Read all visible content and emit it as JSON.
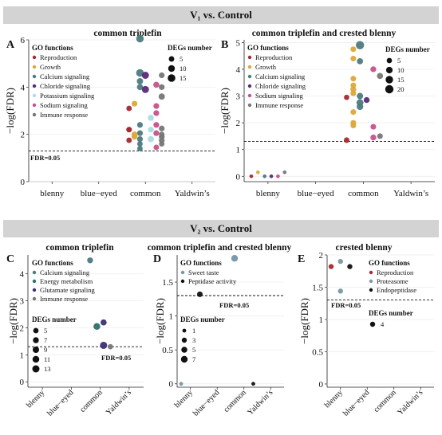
{
  "figure": {
    "section_titles": [
      "V₁ vs. Control",
      "V₂ vs. Control"
    ],
    "common": {
      "x_categories": [
        "blenny",
        "blue−eyed",
        "common",
        "Yaldwin’s"
      ],
      "ylabel": "−log(FDR)",
      "threshold_label": "FDR=0.05",
      "threshold_value": 1.301,
      "legend_go_title": "GO functions",
      "legend_size_title": "DEGs number"
    },
    "colors": {
      "Reproduction": "#a6292f",
      "Growth": "#dca83a",
      "Calcium signaling": "#4c7b80",
      "Chloride signaling": "#5a2a7a",
      "Potassium signaling": "#a9dde6",
      "Sodium signaling": "#c8508c",
      "Immune response": "#767676",
      "Energy metabolism": "#2f6e6e",
      "Glutamate signaling": "#3d2e74",
      "Sweet taste": "#7595a6",
      "Peptidase activity": "#111111",
      "Proteasome": "#7a98a6",
      "Endopeptidase": "#111111",
      "section_band": "#d3d3d3"
    }
  },
  "chart_data": [
    {
      "panel": "A",
      "title": "common triplefin",
      "type": "scatter",
      "xlabel": "",
      "ylabel": "−log(FDR)",
      "ylim": [
        0,
        6
      ],
      "yticks": [
        0,
        2,
        4,
        6
      ],
      "legend_go": [
        "Reproduction",
        "Growth",
        "Calcium signaling",
        "Chloride signaling",
        "Potassium signaling",
        "Sodium signaling",
        "Immune response"
      ],
      "legend_sizes": [
        5,
        10,
        15
      ],
      "points": [
        {
          "x": "common",
          "y": 6.05,
          "go": "Calcium signaling",
          "n": 14
        },
        {
          "x": "common",
          "y": 4.6,
          "go": "Calcium signaling",
          "n": 15
        },
        {
          "x": "common",
          "y": 4.5,
          "go": "Chloride signaling",
          "n": 12
        },
        {
          "x": "common",
          "y": 4.25,
          "go": "Calcium signaling",
          "n": 8
        },
        {
          "x": "common",
          "y": 4.0,
          "go": "Calcium signaling",
          "n": 7
        },
        {
          "x": "common",
          "y": 3.9,
          "go": "Chloride signaling",
          "n": 12
        },
        {
          "x": "common",
          "y": 3.3,
          "go": "Growth",
          "n": 6
        },
        {
          "x": "common",
          "y": 3.1,
          "go": "Reproduction",
          "n": 5
        },
        {
          "x": "common",
          "y": 2.4,
          "go": "Calcium signaling",
          "n": 6
        },
        {
          "x": "common",
          "y": 2.2,
          "go": "Reproduction",
          "n": 5
        },
        {
          "x": "common",
          "y": 2.05,
          "go": "Calcium signaling",
          "n": 6
        },
        {
          "x": "common",
          "y": 2.0,
          "go": "Growth",
          "n": 6
        },
        {
          "x": "common",
          "y": 1.9,
          "go": "Growth",
          "n": 6
        },
        {
          "x": "common",
          "y": 1.8,
          "go": "Calcium signaling",
          "n": 6
        },
        {
          "x": "common",
          "y": 1.6,
          "go": "Calcium signaling",
          "n": 5
        },
        {
          "x": "common",
          "y": 1.4,
          "go": "Calcium signaling",
          "n": 5
        },
        {
          "x": "common",
          "y": 2.7,
          "go": "Potassium signaling",
          "n": 7
        },
        {
          "x": "common",
          "y": 2.2,
          "go": "Potassium signaling",
          "n": 6
        },
        {
          "x": "common",
          "y": 1.8,
          "go": "Potassium signaling",
          "n": 8
        },
        {
          "x": "common",
          "y": 4.5,
          "go": "Immune response",
          "n": 6
        },
        {
          "x": "common",
          "y": 4.1,
          "go": "Sodium signaling",
          "n": 7
        },
        {
          "x": "common",
          "y": 4.0,
          "go": "Immune response",
          "n": 6
        },
        {
          "x": "common",
          "y": 3.6,
          "go": "Immune response",
          "n": 8
        },
        {
          "x": "common",
          "y": 3.2,
          "go": "Sodium signaling",
          "n": 6
        },
        {
          "x": "common",
          "y": 2.9,
          "go": "Sodium signaling",
          "n": 6
        },
        {
          "x": "common",
          "y": 2.4,
          "go": "Sodium signaling",
          "n": 6
        },
        {
          "x": "common",
          "y": 2.25,
          "go": "Immune response",
          "n": 6
        },
        {
          "x": "common",
          "y": 2.05,
          "go": "Sodium signaling",
          "n": 6
        },
        {
          "x": "common",
          "y": 1.9,
          "go": "Immune response",
          "n": 6
        },
        {
          "x": "common",
          "y": 1.75,
          "go": "Immune response",
          "n": 6
        },
        {
          "x": "common",
          "y": 1.6,
          "go": "Immune response",
          "n": 5
        },
        {
          "x": "common",
          "y": 1.45,
          "go": "Sodium signaling",
          "n": 5
        },
        {
          "x": "common",
          "y": 2.2,
          "go": "Reproduction",
          "n": 5
        },
        {
          "x": "common",
          "y": 1.75,
          "go": "Reproduction",
          "n": 5
        },
        {
          "x": "common",
          "y": 2.0,
          "go": "Immune response",
          "n": 5
        }
      ]
    },
    {
      "panel": "B",
      "title": "common triplefin and crested blenny",
      "type": "scatter",
      "xlabel": "",
      "ylabel": "−log(FDR)",
      "ylim": [
        -0.2,
        5.1
      ],
      "yticks": [
        0,
        1,
        2,
        3,
        4,
        5
      ],
      "legend_go": [
        "Reproduction",
        "Growth",
        "Calcium signaling",
        "Chloride signaling",
        "Sodium signaling",
        "Immune response"
      ],
      "legend_sizes": [
        5,
        10,
        15,
        20
      ],
      "points": [
        {
          "x": "blenny",
          "y": 0.0,
          "go": "Reproduction",
          "n": 1
        },
        {
          "x": "blenny",
          "y": 0.15,
          "go": "Growth",
          "n": 1
        },
        {
          "x": "blenny",
          "y": 0.0,
          "go": "Calcium signaling",
          "n": 1
        },
        {
          "x": "blenny",
          "y": 0.0,
          "go": "Chloride signaling",
          "n": 1
        },
        {
          "x": "blenny",
          "y": 0.0,
          "go": "Sodium signaling",
          "n": 1
        },
        {
          "x": "blenny",
          "y": 0.15,
          "go": "Immune response",
          "n": 1
        },
        {
          "x": "common",
          "y": 4.9,
          "go": "Calcium signaling",
          "n": 20
        },
        {
          "x": "common",
          "y": 4.75,
          "go": "Growth",
          "n": 6
        },
        {
          "x": "common",
          "y": 4.4,
          "go": "Growth",
          "n": 6
        },
        {
          "x": "common",
          "y": 4.3,
          "go": "Calcium signaling",
          "n": 8
        },
        {
          "x": "common",
          "y": 4.0,
          "go": "Sodium signaling",
          "n": 7
        },
        {
          "x": "common",
          "y": 3.75,
          "go": "Immune response",
          "n": 8
        },
        {
          "x": "common",
          "y": 3.65,
          "go": "Growth",
          "n": 6
        },
        {
          "x": "common",
          "y": 3.4,
          "go": "Growth",
          "n": 6
        },
        {
          "x": "common",
          "y": 3.25,
          "go": "Growth",
          "n": 7
        },
        {
          "x": "common",
          "y": 3.1,
          "go": "Growth",
          "n": 6
        },
        {
          "x": "common",
          "y": 3.0,
          "go": "Calcium signaling",
          "n": 9
        },
        {
          "x": "common",
          "y": 2.95,
          "go": "Reproduction",
          "n": 5
        },
        {
          "x": "common",
          "y": 2.85,
          "go": "Chloride signaling",
          "n": 7
        },
        {
          "x": "common",
          "y": 2.75,
          "go": "Calcium signaling",
          "n": 12
        },
        {
          "x": "common",
          "y": 2.6,
          "go": "Calcium signaling",
          "n": 10
        },
        {
          "x": "common",
          "y": 2.4,
          "go": "Growth",
          "n": 6
        },
        {
          "x": "common",
          "y": 2.0,
          "go": "Growth",
          "n": 6
        },
        {
          "x": "common",
          "y": 1.9,
          "go": "Growth",
          "n": 6
        },
        {
          "x": "common",
          "y": 1.85,
          "go": "Sodium signaling",
          "n": 6
        },
        {
          "x": "common",
          "y": 1.5,
          "go": "Immune response",
          "n": 6
        },
        {
          "x": "common",
          "y": 1.45,
          "go": "Sodium signaling",
          "n": 7
        },
        {
          "x": "common",
          "y": 1.35,
          "go": "Reproduction",
          "n": 6
        }
      ]
    },
    {
      "panel": "C",
      "title": "common triplefin",
      "type": "scatter",
      "xlabel": "",
      "ylabel": "−log(FDR)",
      "ylim": [
        -0.2,
        4.7
      ],
      "yticks": [
        0,
        1,
        2,
        3,
        4
      ],
      "legend_go": [
        "Calcium signaling",
        "Energy metabolism",
        "Glutamate signaling",
        "Immune response"
      ],
      "legend_sizes": [
        5,
        7,
        9,
        11,
        13
      ],
      "points": [
        {
          "x": "common",
          "y": 4.5,
          "go": "Calcium signaling",
          "n": 7
        },
        {
          "x": "common",
          "y": 2.05,
          "go": "Energy metabolism",
          "n": 11
        },
        {
          "x": "common",
          "y": 2.2,
          "go": "Glutamate signaling",
          "n": 8
        },
        {
          "x": "common",
          "y": 1.35,
          "go": "Glutamate signaling",
          "n": 13
        },
        {
          "x": "common",
          "y": 1.3,
          "go": "Immune response",
          "n": 5
        }
      ]
    },
    {
      "panel": "D",
      "title": "common triplefin and crested blenny",
      "type": "scatter",
      "xlabel": "",
      "ylabel": "−log(FDR)",
      "ylim": [
        -0.05,
        1.9
      ],
      "yticks": [
        0.0,
        0.5,
        1.0,
        1.5
      ],
      "legend_go": [
        "Sweet taste",
        "Peptidase activity"
      ],
      "legend_sizes": [
        1,
        3,
        5,
        7
      ],
      "points": [
        {
          "x": "blenny",
          "y": 1.32,
          "go": "Peptidase activity",
          "n": 4
        },
        {
          "x": "blenny",
          "y": 0.0,
          "go": "Sweet taste",
          "n": 1
        },
        {
          "x": "common",
          "y": 1.85,
          "go": "Sweet taste",
          "n": 7
        },
        {
          "x": "common",
          "y": 0.0,
          "go": "Peptidase activity",
          "n": 1
        }
      ]
    },
    {
      "panel": "E",
      "title": "crested blenny",
      "type": "scatter",
      "xlabel": "",
      "ylabel": "−log(FDR)",
      "ylim": [
        -0.05,
        2.0
      ],
      "yticks": [
        0.0,
        0.5,
        1.0,
        1.5,
        2.0
      ],
      "legend_go": [
        "Reproduction",
        "Proteasome",
        "Endopeptidase"
      ],
      "legend_sizes": [
        4
      ],
      "points": [
        {
          "x": "blenny",
          "y": 1.9,
          "go": "Proteasome",
          "n": 5
        },
        {
          "x": "blenny",
          "y": 1.82,
          "go": "Reproduction",
          "n": 5
        },
        {
          "x": "blenny",
          "y": 1.82,
          "go": "Endopeptidase",
          "n": 5
        },
        {
          "x": "blenny",
          "y": 1.44,
          "go": "Proteasome",
          "n": 4
        }
      ]
    }
  ]
}
